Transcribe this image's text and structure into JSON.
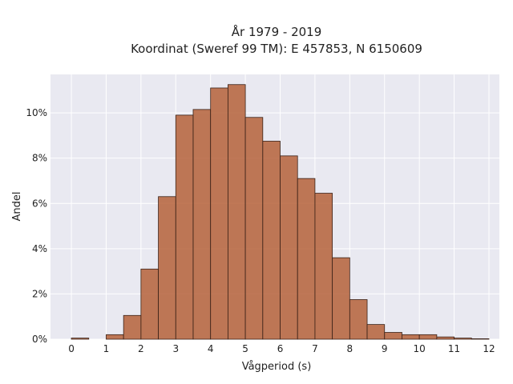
{
  "chart_data": {
    "type": "bar",
    "title_line1": "År 1979 - 2019",
    "title_line2": "Koordinat (Sweref 99 TM): E 457853, N 6150609",
    "xlabel": "Vågperiod (s)",
    "ylabel": "Andel",
    "bin_width": 0.5,
    "x_bin_starts": [
      0,
      0.5,
      1,
      1.5,
      2,
      2.5,
      3,
      3.5,
      4,
      4.5,
      5,
      5.5,
      6,
      6.5,
      7,
      7.5,
      8,
      8.5,
      9,
      9.5,
      10,
      10.5,
      11,
      11.5
    ],
    "values": [
      0.05,
      0.0,
      0.2,
      1.05,
      3.1,
      6.3,
      9.9,
      10.15,
      11.1,
      11.25,
      9.8,
      8.75,
      8.1,
      7.1,
      6.45,
      3.6,
      1.75,
      0.65,
      0.3,
      0.2,
      0.2,
      0.1,
      0.05,
      0.02
    ],
    "xlim": [
      -0.6,
      12.3
    ],
    "ylim": [
      0,
      11.7
    ],
    "x_ticks": [
      0,
      1,
      2,
      3,
      4,
      5,
      6,
      7,
      8,
      9,
      10,
      11,
      12
    ],
    "x_tick_labels": [
      "0",
      "1",
      "2",
      "3",
      "4",
      "5",
      "6",
      "7",
      "8",
      "9",
      "10",
      "11",
      "12"
    ],
    "y_ticks": [
      0,
      2,
      4,
      6,
      8,
      10
    ],
    "y_tick_labels": [
      "0%",
      "2%",
      "4%",
      "6%",
      "8%",
      "10%"
    ],
    "bar_color": "#b5623a",
    "bar_edge_color": "#3a2218",
    "plot_bg": "#e9e9f1",
    "grid_color": "#ffffff",
    "grid": true
  }
}
